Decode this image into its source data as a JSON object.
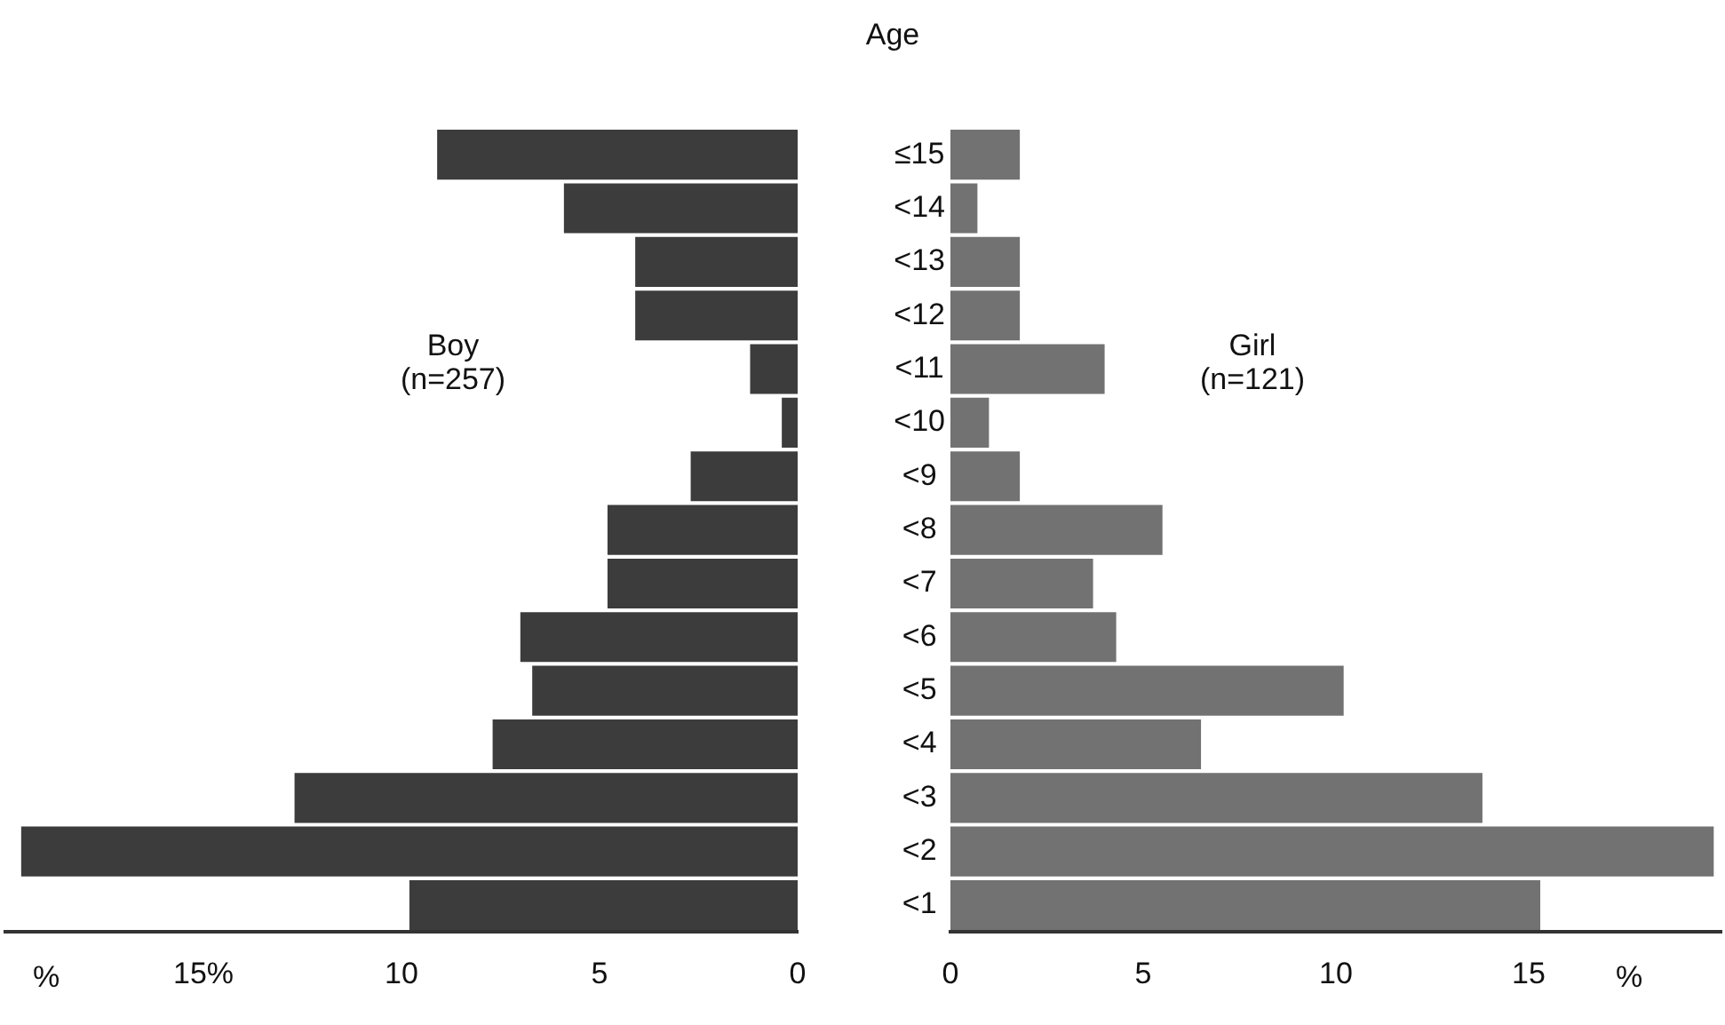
{
  "chart_data": [
    {
      "type": "bar",
      "orientation": "horizontal",
      "categories": [
        "≤15",
        "<14",
        "<13",
        "<12",
        "<11",
        "<10",
        "<9",
        "<8",
        "<7",
        "<6",
        "<5",
        "<4",
        "<3",
        "<2",
        "<1"
      ],
      "series": [
        {
          "color": "#3c3c3c",
          "values": [
            9.1,
            5.9,
            4.1,
            4.1,
            1.2,
            0.4,
            2.7,
            4.8,
            4.8,
            7.0,
            6.7,
            7.7,
            12.7,
            19.6,
            9.8
          ]
        }
      ],
      "xlim": [
        20,
        0
      ],
      "xticks": [
        {
          "value": 15,
          "label": "15%"
        },
        10,
        5,
        0
      ],
      "xlabel": "%",
      "annotations": [
        "Boy",
        "(n=257)"
      ],
      "tick_labels": "x"
    },
    {
      "type": "bar",
      "orientation": "horizontal",
      "categories": [
        "≤15",
        "<14",
        "<13",
        "<12",
        "<11",
        "<10",
        "<9",
        "<8",
        "<7",
        "<6",
        "<5",
        "<4",
        "<3",
        "<2",
        "<1"
      ],
      "series": [
        {
          "color": "#727272",
          "values": [
            1.8,
            0.7,
            1.8,
            1.8,
            4.0,
            1.0,
            1.8,
            5.5,
            3.7,
            4.3,
            10.2,
            6.5,
            13.8,
            19.8,
            15.3
          ]
        }
      ],
      "xlim": [
        0,
        20
      ],
      "xticks": [
        0,
        5,
        10,
        15
      ],
      "xlabel": "%",
      "ylabel": "Age",
      "annotations": [
        "Girl",
        "(n=121)"
      ]
    }
  ]
}
